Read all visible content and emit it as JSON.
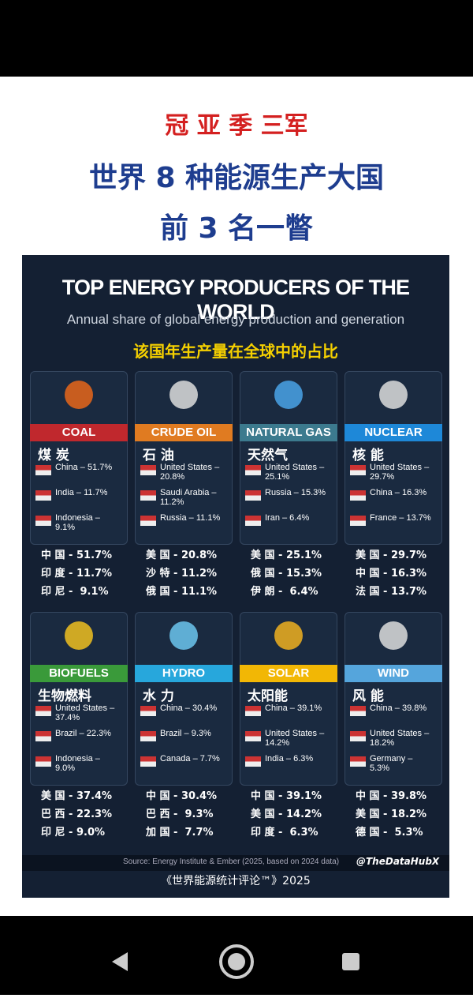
{
  "header": {
    "line1": "冠 亚 季 三军",
    "line2": "世界 8 种能源生产大国",
    "line3": "前 3 名一瞥"
  },
  "infographic": {
    "title": "TOP ENERGY PRODUCERS OF THE WORLD",
    "subtitle": "Annual share of global energy production and generation",
    "subtitle_zh": "该国年生产量在全球中的占比",
    "cards": [
      {
        "name": "COAL",
        "name_zh": "煤 炭",
        "entries": [
          "China – 51.7%",
          "India – 11.7%",
          "Indonesia – 9.1%"
        ],
        "summary": [
          "中 国 - 51.7%",
          "印 度 - 11.7%",
          "印 尼 -  9.1%"
        ]
      },
      {
        "name": "CRUDE OIL",
        "name_zh": "石 油",
        "entries": [
          "United States – 20.8%",
          "Saudi Arabia – 11.2%",
          "Russia – 11.1%"
        ],
        "summary": [
          "美 国 - 20.8%",
          "沙 特 - 11.2%",
          "俄 国 - 11.1%"
        ]
      },
      {
        "name": "NATURAL GAS",
        "name_zh": "天然气",
        "entries": [
          "United States – 25.1%",
          "Russia – 15.3%",
          "Iran – 6.4%"
        ],
        "summary": [
          "美 国 - 25.1%",
          "俄 国 - 15.3%",
          "伊 朗 -  6.4%"
        ]
      },
      {
        "name": "NUCLEAR",
        "name_zh": "核 能",
        "entries": [
          "United States – 29.7%",
          "China – 16.3%",
          "France – 13.7%"
        ],
        "summary": [
          "美 国 - 29.7%",
          "中 国 - 16.3%",
          "法 国 - 13.7%"
        ]
      },
      {
        "name": "BIOFUELS",
        "name_zh": "生物燃料",
        "entries": [
          "United States – 37.4%",
          "Brazil – 22.3%",
          "Indonesia – 9.0%"
        ],
        "summary": [
          "美 国 - 37.4%",
          "巴 西 - 22.3%",
          "印 尼 - 9.0%"
        ]
      },
      {
        "name": "HYDRO",
        "name_zh": "水 力",
        "entries": [
          "China – 30.4%",
          "Brazil – 9.3%",
          "Canada – 7.7%"
        ],
        "summary": [
          "中 国 - 30.4%",
          "巴 西 -  9.3%",
          "加 国 -  7.7%"
        ]
      },
      {
        "name": "SOLAR",
        "name_zh": "太阳能",
        "entries": [
          "China – 39.1%",
          "United States – 14.2%",
          "India – 6.3%"
        ],
        "summary": [
          "中 国 - 39.1%",
          "美 国 - 14.2%",
          "印 度 -  6.3%"
        ]
      },
      {
        "name": "WIND",
        "name_zh": "风 能",
        "entries": [
          "China – 39.8%",
          "United States – 18.2%",
          "Germany – 5.3%"
        ],
        "summary": [
          "中 国 - 39.8%",
          "美 国 - 18.2%",
          "德 国 -  5.3%"
        ]
      }
    ],
    "source": "Source: Energy Institute & Ember (2025, based on 2024 data)",
    "handle": "@TheDataHubX",
    "footer_zh": "《世界能源统计评论™》2025"
  }
}
